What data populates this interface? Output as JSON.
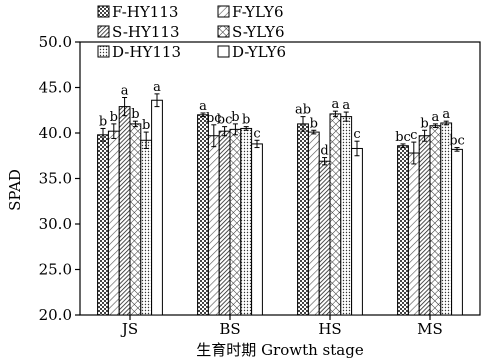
{
  "chart_data": {
    "type": "bar",
    "ylabel": "SPAD",
    "xlabel": "生育时期 Growth stage",
    "ylim": [
      20.0,
      50.0
    ],
    "yticks": [
      "20.0",
      "25.0",
      "30.0",
      "35.0",
      "40.0",
      "45.0",
      "50.0"
    ],
    "categories": [
      "JS",
      "BS",
      "HS",
      "MS"
    ],
    "legend_position": "top-left, inside plot, two columns",
    "series": [
      {
        "name": "F-HY113",
        "pattern": "checker",
        "values": [
          39.8,
          42.0,
          41.0,
          38.6
        ],
        "errors": [
          0.7,
          0.2,
          0.8,
          0.2
        ],
        "labels": [
          "b",
          "a",
          "ab",
          "bc"
        ]
      },
      {
        "name": "F-YLY6",
        "pattern": "hatch-light",
        "values": [
          40.2,
          39.7,
          40.1,
          37.8
        ],
        "errors": [
          0.8,
          1.2,
          0.2,
          1.2
        ],
        "labels": [
          "b",
          "bc",
          "b",
          "c"
        ]
      },
      {
        "name": "S-HY113",
        "pattern": "hatch-dense",
        "values": [
          42.9,
          40.2,
          36.9,
          39.7
        ],
        "errors": [
          1.0,
          0.5,
          0.4,
          0.6
        ],
        "labels": [
          "a",
          "bc",
          "d",
          "b"
        ]
      },
      {
        "name": "S-YLY6",
        "pattern": "cross",
        "values": [
          41.0,
          40.4,
          42.1,
          40.8
        ],
        "errors": [
          0.3,
          0.6,
          0.3,
          0.2
        ],
        "labels": [
          "b",
          "b",
          "a",
          "a"
        ]
      },
      {
        "name": "D-HY113",
        "pattern": "dots-dense",
        "values": [
          39.2,
          40.5,
          41.8,
          41.1
        ],
        "errors": [
          0.9,
          0.2,
          0.5,
          0.2
        ],
        "labels": [
          "b",
          "b",
          "a",
          "a"
        ]
      },
      {
        "name": "D-YLY6",
        "pattern": "plain",
        "values": [
          43.6,
          38.8,
          38.3,
          38.2
        ],
        "errors": [
          0.7,
          0.4,
          0.8,
          0.2
        ],
        "labels": [
          "a",
          "c",
          "c",
          "bc"
        ]
      }
    ]
  }
}
